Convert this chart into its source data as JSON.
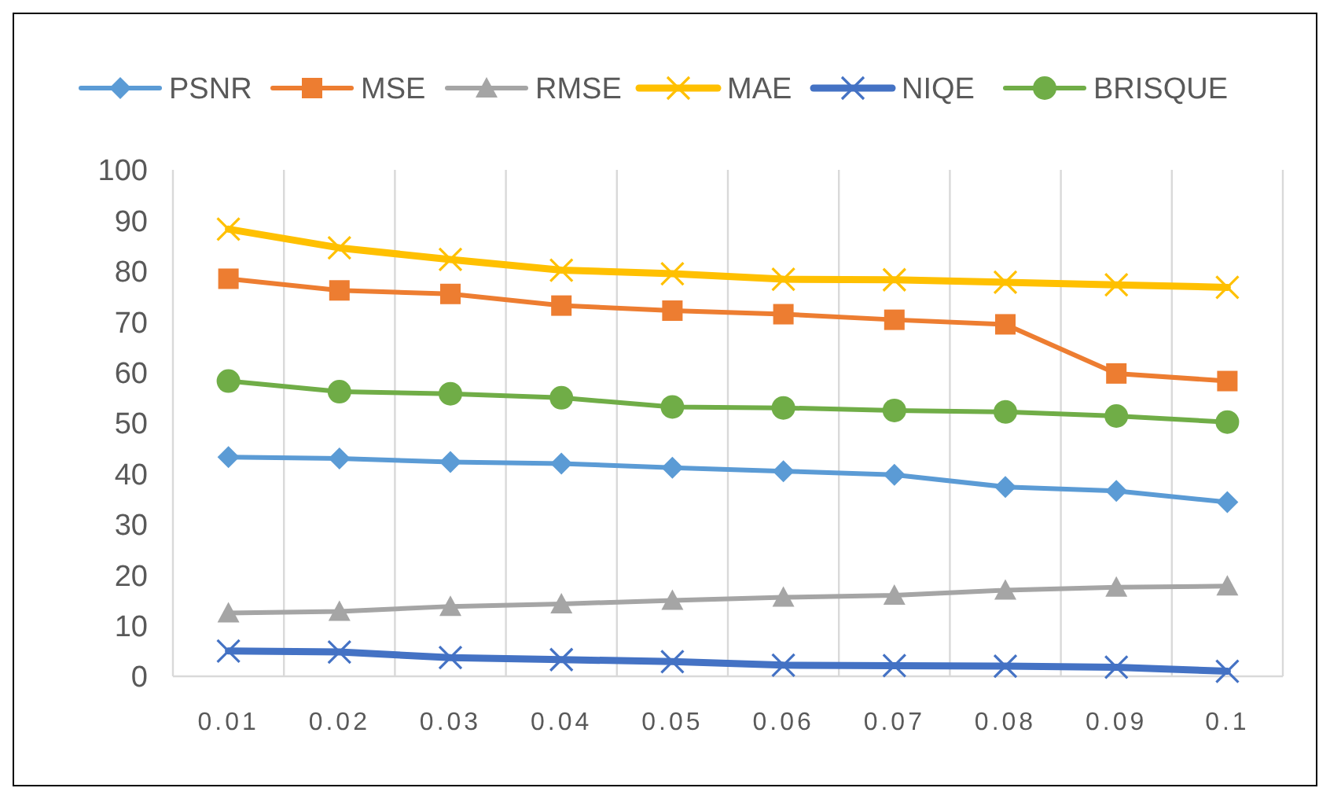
{
  "chart_data": {
    "type": "line",
    "categories": [
      "0.01",
      "0.02",
      "0.03",
      "0.04",
      "0.05",
      "0.06",
      "0.07",
      "0.08",
      "0.09",
      "0.1"
    ],
    "ylim": [
      0,
      100
    ],
    "yticks": [
      0,
      10,
      20,
      30,
      40,
      50,
      60,
      70,
      80,
      90,
      100
    ],
    "grid": "x",
    "legend": "top",
    "series": [
      {
        "name": "PSNR",
        "color": "#5b9bd5",
        "marker": "diamond",
        "values": [
          43.3,
          43,
          42.3,
          42,
          41.2,
          40.5,
          39.8,
          37.4,
          36.6,
          34.4
        ]
      },
      {
        "name": "MSE",
        "color": "#ed7d31",
        "marker": "square",
        "values": [
          78.5,
          76.2,
          75.5,
          73.2,
          72.2,
          71.5,
          70.4,
          69.5,
          59.8,
          58.3
        ]
      },
      {
        "name": "RMSE",
        "color": "#a5a5a5",
        "marker": "triangle",
        "values": [
          12.5,
          12.8,
          13.8,
          14.3,
          15,
          15.6,
          16,
          17,
          17.6,
          17.8
        ]
      },
      {
        "name": "MAE",
        "color": "#ffc000",
        "marker": "cross",
        "values": [
          88.3,
          84.6,
          82.3,
          80.2,
          79.5,
          78.4,
          78.3,
          77.8,
          77.3,
          76.8
        ]
      },
      {
        "name": "NIQE",
        "color": "#4472c4",
        "marker": "cross",
        "values": [
          5,
          4.8,
          3.7,
          3.3,
          2.9,
          2.2,
          2.1,
          2,
          1.8,
          1
        ]
      },
      {
        "name": "BRISQUE",
        "color": "#70ad47",
        "marker": "circle",
        "values": [
          58.3,
          56.2,
          55.8,
          55,
          53.2,
          53,
          52.5,
          52.2,
          51.4,
          50.2
        ]
      }
    ]
  }
}
